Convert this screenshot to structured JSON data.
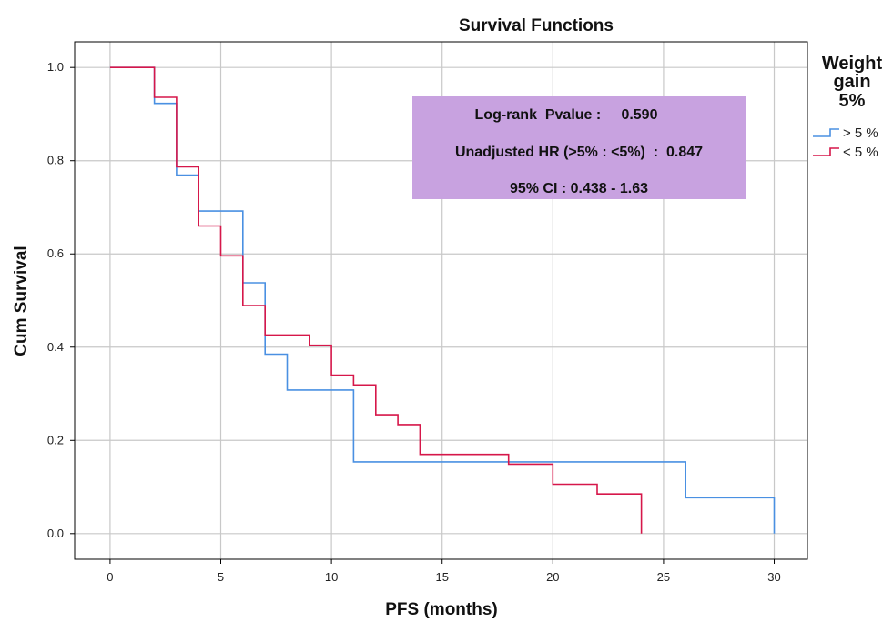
{
  "chart_data": {
    "type": "line",
    "subtype": "kaplan-meier-step",
    "title": "Survival Functions",
    "xlabel": "PFS (months)",
    "ylabel": "Cum Survival",
    "xlim": [
      -1.6,
      31.5
    ],
    "ylim": [
      -0.055,
      1.055
    ],
    "xticks": [
      0,
      5,
      10,
      15,
      20,
      25,
      30
    ],
    "yticks": [
      0.0,
      0.2,
      0.4,
      0.6,
      0.8,
      1.0
    ],
    "xtick_labels": [
      "0",
      "5",
      "10",
      "15",
      "20",
      "25",
      "30"
    ],
    "ytick_labels": [
      "0.0",
      "0.2",
      "0.4",
      "0.6",
      "0.8",
      "1.0"
    ],
    "grid": true,
    "legend": {
      "title_lines": [
        "Weight",
        "gain",
        "5%"
      ],
      "position": "right"
    },
    "annotation": {
      "lines": [
        "Log-rank  Pvalue :     0.590",
        "Unadjusted HR (>5% : <5%)  :  0.847",
        "95% CI : 0.438 - 1.63"
      ],
      "background": "#c8a2e0"
    },
    "series": [
      {
        "name": "> 5 %",
        "color": "#4a90e2",
        "points": [
          [
            0,
            1.0
          ],
          [
            2,
            0.923
          ],
          [
            3,
            0.769
          ],
          [
            4,
            0.692
          ],
          [
            6,
            0.538
          ],
          [
            7,
            0.385
          ],
          [
            8,
            0.308
          ],
          [
            11,
            0.154
          ],
          [
            26,
            0.077
          ],
          [
            30,
            0.0
          ]
        ]
      },
      {
        "name": "< 5 %",
        "color": "#d6174a",
        "points": [
          [
            0,
            1.0
          ],
          [
            2,
            0.936
          ],
          [
            3,
            0.787
          ],
          [
            4,
            0.66
          ],
          [
            5,
            0.596
          ],
          [
            6,
            0.489
          ],
          [
            7,
            0.426
          ],
          [
            9,
            0.404
          ],
          [
            10,
            0.34
          ],
          [
            11,
            0.319
          ],
          [
            12,
            0.255
          ],
          [
            13,
            0.234
          ],
          [
            14,
            0.17
          ],
          [
            18,
            0.149
          ],
          [
            20,
            0.106
          ],
          [
            22,
            0.085
          ],
          [
            24,
            0.0
          ]
        ]
      }
    ]
  }
}
